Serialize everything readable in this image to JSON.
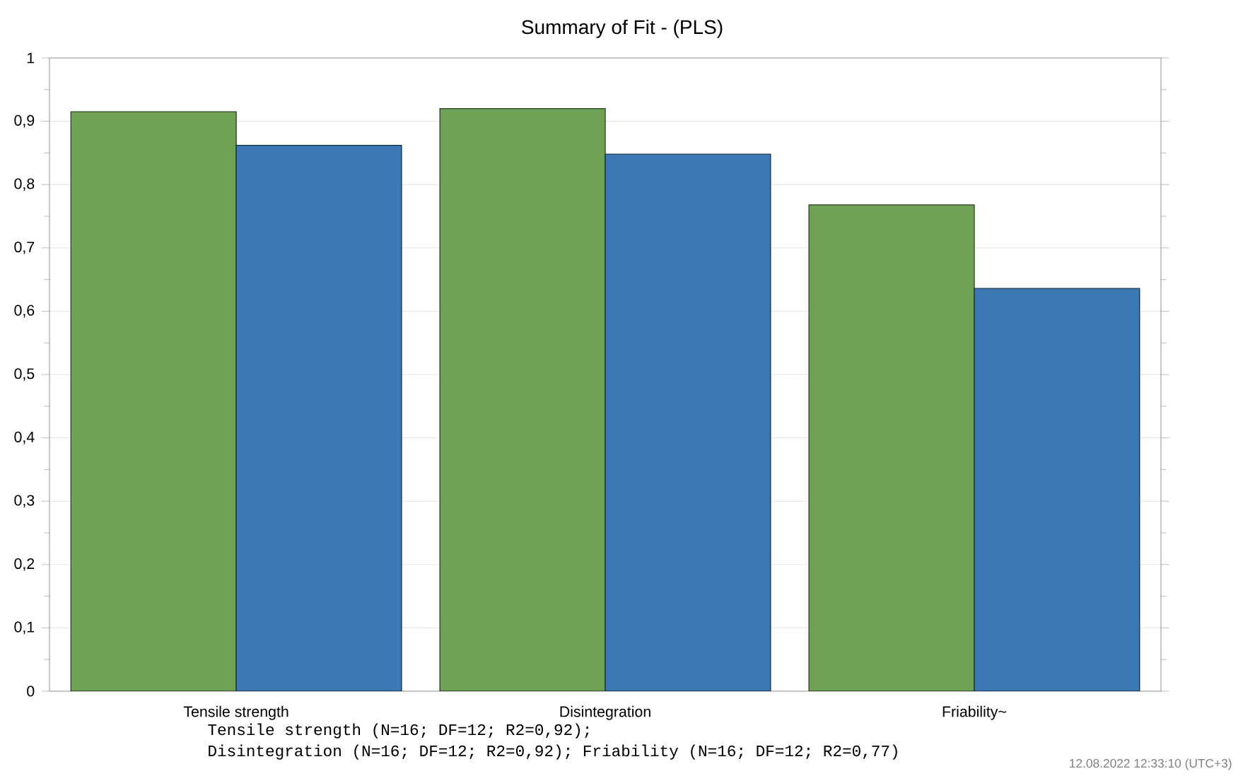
{
  "chart_data": {
    "type": "bar",
    "title": "Summary of Fit - (PLS)",
    "categories": [
      "Tensile strength",
      "Disintegration",
      "Friability~"
    ],
    "series": [
      {
        "color": "#6fa254",
        "values": [
          0.915,
          0.92,
          0.768
        ]
      },
      {
        "color": "#3b78b4",
        "values": [
          0.862,
          0.848,
          0.636
        ]
      }
    ],
    "ylim": [
      0,
      1
    ],
    "yticks": [
      0,
      {
        "value": 0.1,
        "label": "0,1"
      },
      {
        "value": 0.2,
        "label": "0,2"
      },
      {
        "value": 0.3,
        "label": "0,3"
      },
      {
        "value": 0.4,
        "label": "0,4"
      },
      {
        "value": 0.5,
        "label": "0,5"
      },
      {
        "value": 0.6,
        "label": "0,6"
      },
      {
        "value": 0.7,
        "label": "0,7"
      },
      {
        "value": 0.8,
        "label": "0,8"
      },
      {
        "value": 0.9,
        "label": "0,9"
      },
      1
    ],
    "grid": "y",
    "annotations": [
      "Tensile strength (N=16; DF=12; R2=0,92);",
      "Disintegration (N=16; DF=12; R2=0,92); Friability (N=16; DF=12; R2=0,77)",
      "12.08.2022 12:33:10 (UTC+3)"
    ]
  }
}
